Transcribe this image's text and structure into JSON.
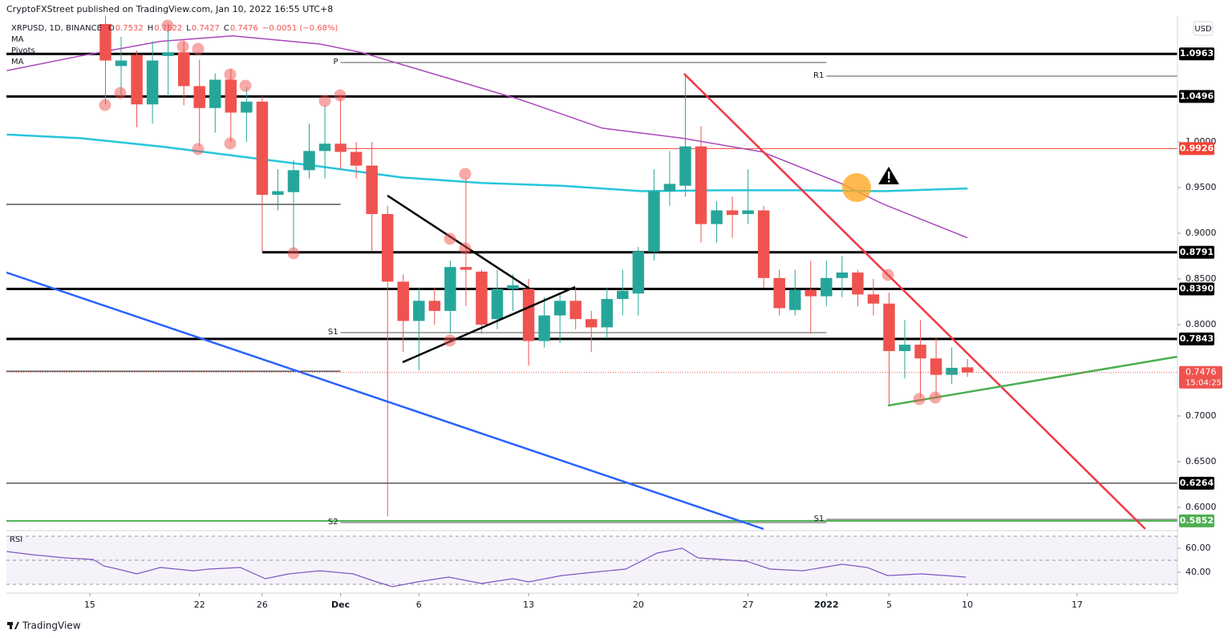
{
  "header": "CryptoFXStreet published on TradingView.com, Jan 10, 2022 16:55 UTC+8",
  "brand": "TradingView",
  "currency": "USD",
  "chart_data": {
    "type": "candlestick",
    "up_color": "#26a69a",
    "down_color": "#ef5350",
    "series": [
      {
        "name": "XRPUSD, 1D, BINANCE",
        "x": [
          1,
          2,
          3,
          4,
          5,
          6,
          7,
          8,
          9,
          10,
          11,
          12,
          13,
          14,
          15,
          16,
          17,
          18,
          19,
          20,
          21,
          22,
          23,
          24,
          25,
          26,
          27,
          28,
          29,
          30,
          31,
          32,
          33,
          34,
          35,
          36,
          37,
          38,
          39,
          40,
          41,
          42,
          43,
          44,
          45,
          46,
          47,
          48,
          49,
          50,
          51,
          52,
          53,
          54,
          55,
          56
        ],
        "open": [
          1.129,
          1.083,
          1.095,
          1.041,
          1.094,
          1.098,
          1.061,
          1.037,
          1.068,
          1.032,
          1.044,
          0.942,
          0.945,
          0.969,
          0.99,
          0.998,
          0.989,
          0.974,
          0.921,
          0.847,
          0.804,
          0.826,
          0.815,
          0.863,
          0.858,
          0.806,
          0.839,
          0.839,
          0.782,
          0.81,
          0.826,
          0.806,
          0.797,
          0.828,
          0.834,
          0.88,
          0.946,
          0.952,
          0.995,
          0.91,
          0.925,
          0.921,
          0.925,
          0.851,
          0.816,
          0.838,
          0.831,
          0.851,
          0.857,
          0.833,
          0.823,
          0.771,
          0.778,
          0.763,
          0.745,
          0.7532
        ],
        "high": [
          1.138,
          1.115,
          1.1,
          1.11,
          1.13,
          1.11,
          1.09,
          1.075,
          1.08,
          1.06,
          1.05,
          0.97,
          0.98,
          1.02,
          1.04,
          1.05,
          1.0,
          1.0,
          0.93,
          0.855,
          0.84,
          0.84,
          0.87,
          0.96,
          0.86,
          0.86,
          0.855,
          0.85,
          0.83,
          0.835,
          0.84,
          0.815,
          0.84,
          0.86,
          0.885,
          0.97,
          0.99,
          1.073,
          1.017,
          0.935,
          0.94,
          0.97,
          0.93,
          0.86,
          0.86,
          0.87,
          0.87,
          0.875,
          0.86,
          0.85,
          0.835,
          0.805,
          0.805,
          0.785,
          0.775,
          0.7622
        ],
        "low": [
          1.041,
          1.05,
          1.016,
          1.02,
          1.05,
          1.04,
          0.995,
          1.01,
          1.0,
          1.0,
          0.88,
          0.925,
          0.88,
          0.96,
          0.96,
          0.97,
          0.96,
          0.88,
          0.59,
          0.77,
          0.75,
          0.8,
          0.79,
          0.82,
          0.79,
          0.795,
          0.815,
          0.755,
          0.775,
          0.78,
          0.795,
          0.77,
          0.785,
          0.81,
          0.81,
          0.87,
          0.93,
          0.94,
          0.89,
          0.89,
          0.895,
          0.91,
          0.84,
          0.81,
          0.81,
          0.79,
          0.82,
          0.83,
          0.82,
          0.81,
          0.713,
          0.741,
          0.72,
          0.72,
          0.735,
          0.7427
        ],
        "close": [
          1.089,
          1.089,
          1.041,
          1.089,
          1.098,
          1.061,
          1.037,
          1.068,
          1.032,
          1.044,
          0.942,
          0.946,
          0.969,
          0.99,
          0.998,
          0.989,
          0.974,
          0.921,
          0.847,
          0.804,
          0.826,
          0.815,
          0.863,
          0.86,
          0.8,
          0.839,
          0.843,
          0.782,
          0.81,
          0.826,
          0.806,
          0.797,
          0.828,
          0.837,
          0.88,
          0.946,
          0.954,
          0.995,
          0.91,
          0.925,
          0.92,
          0.925,
          0.851,
          0.818,
          0.838,
          0.831,
          0.851,
          0.857,
          0.833,
          0.823,
          0.771,
          0.778,
          0.763,
          0.745,
          0.7527,
          0.7476
        ]
      }
    ],
    "ohlc_keys": [
      "O",
      "H",
      "L",
      "C"
    ],
    "change": "−0.0051 (−0.68%)",
    "indicators": [
      "MA",
      "Pivots",
      "MA"
    ],
    "ma": [
      {
        "name": "MA",
        "color": "#ab47bc",
        "x": [
          -5.3,
          -0.6,
          4.5,
          9.1,
          14.7,
          17.3,
          22.4,
          27.5,
          32.7,
          37.8,
          42.9,
          48.0,
          50.6,
          56
        ],
        "values": [
          1.078,
          1.094,
          1.11,
          1.116,
          1.107,
          1.098,
          1.072,
          1.046,
          1.015,
          1.004,
          0.989,
          0.954,
          0.932,
          0.895
        ]
      },
      {
        "name": "MA",
        "color": "#26c6da",
        "x": [
          -5.3,
          -0.6,
          4.5,
          9.6,
          14.7,
          19.9,
          25.0,
          30.1,
          35.2,
          40.3,
          45.4,
          50.6,
          56
        ],
        "values": [
          1.008,
          1.004,
          0.995,
          0.984,
          0.973,
          0.961,
          0.955,
          0.952,
          0.946,
          0.947,
          0.947,
          0.946,
          0.949
        ]
      }
    ],
    "xlim": [
      -5.32,
      69.4
    ],
    "ylim": [
      0.5763,
      1.1377
    ],
    "xticks": [
      {
        "value": 0,
        "label": "15"
      },
      {
        "value": 7,
        "label": "22"
      },
      {
        "value": 11,
        "label": "26"
      },
      {
        "value": 16,
        "label": "Dec"
      },
      {
        "value": 21,
        "label": "6"
      },
      {
        "value": 28,
        "label": "13"
      },
      {
        "value": 35,
        "label": "20"
      },
      {
        "value": 42,
        "label": "27"
      },
      {
        "value": 47,
        "label": "2022"
      },
      {
        "value": 51,
        "label": "5"
      },
      {
        "value": 56,
        "label": "10"
      },
      {
        "value": 63,
        "label": "17"
      }
    ],
    "yticks": [
      {
        "value": 1.0,
        "label": "1.0000"
      },
      {
        "value": 0.95,
        "label": "0.9500"
      },
      {
        "value": 0.9,
        "label": "0.9000"
      },
      {
        "value": 0.85,
        "label": "0.8500"
      },
      {
        "value": 0.8,
        "label": "0.8000"
      },
      {
        "value": 0.7,
        "label": "0.7000"
      },
      {
        "value": 0.65,
        "label": "0.6500"
      },
      {
        "value": 0.6,
        "label": "0.6000"
      }
    ],
    "levels": [
      {
        "price": 1.0963,
        "label": "1.0963",
        "color": "#000000",
        "width": 3
      },
      {
        "price": 1.0496,
        "label": "1.0496",
        "color": "#000000",
        "width": 3
      },
      {
        "price": 0.9926,
        "label": "0.9926",
        "color": "#f44336",
        "width": 1,
        "from": 16
      },
      {
        "price": 0.8791,
        "label": "0.8791",
        "color": "#000000",
        "width": 3,
        "from": 11
      },
      {
        "price": 0.839,
        "label": "0.8390",
        "color": "#000000",
        "width": 3
      },
      {
        "price": 0.7843,
        "label": "0.7843",
        "color": "#000000",
        "width": 3
      },
      {
        "price": 0.6264,
        "label": "0.6264",
        "color": "#000000",
        "width": 1
      },
      {
        "price": 0.5852,
        "label": "0.5852",
        "color": "#4caf50",
        "width": 2
      },
      {
        "price": 0.9316,
        "color": "#000000",
        "width": 1,
        "to": 16
      },
      {
        "price": 0.749,
        "color": "#000000",
        "width": 1,
        "to": 16
      }
    ],
    "pivots": [
      {
        "name": "P",
        "price": 1.0868,
        "from": 16,
        "to": 47
      },
      {
        "name": "R1",
        "price": 1.0719,
        "from": 47
      },
      {
        "name": "S1",
        "price": 0.7912,
        "from": 16,
        "to": 47
      },
      {
        "name": "S2",
        "price": 0.5833,
        "from": 16,
        "to": 47
      },
      {
        "name": "S1",
        "price": 0.5868,
        "from": 47
      }
    ],
    "last_price": {
      "value": 0.7476,
      "label": "0.7476"
    },
    "countdown": "15:04:25",
    "drawings": [
      {
        "color": "#2962ff",
        "x": [
          -5.32,
          42.99
        ],
        "y": [
          0.857,
          0.5763
        ]
      },
      {
        "color": "#f23645",
        "x": [
          37.92,
          67.35
        ],
        "y": [
          1.0746,
          0.5763
        ]
      },
      {
        "color": "#4caf50",
        "x": [
          50.92,
          69.4
        ],
        "y": [
          0.7114,
          0.7649
        ]
      },
      {
        "color": "#000000",
        "x": [
          18.99,
          28.05
        ],
        "y": [
          0.9412,
          0.8395
        ]
      },
      {
        "color": "#000000",
        "x": [
          19.96,
          30.97
        ],
        "y": [
          0.7588,
          0.8412
        ]
      }
    ],
    "rsi": {
      "name": "RSI",
      "color": "#7e57c2",
      "x": [
        -5.3,
        -3.7,
        -1.6,
        0.2,
        0.9,
        2.0,
        3.0,
        4.5,
        6.6,
        7.6,
        9.6,
        11.2,
        12.7,
        14.7,
        16.8,
        18.3,
        19.3,
        20.9,
        22.9,
        25.0,
        27.0,
        28.0,
        30.1,
        32.1,
        34.2,
        36.2,
        37.8,
        38.8,
        41.9,
        43.4,
        45.5,
        48.0,
        49.6,
        50.9,
        53.1,
        55.9
      ],
      "values": [
        57.3,
        54.7,
        52,
        50.7,
        45.3,
        42,
        38.7,
        44,
        41.3,
        42.7,
        44,
        34.7,
        38.7,
        41.3,
        38.7,
        32,
        28,
        32,
        36,
        30.7,
        34.7,
        32,
        37.3,
        40,
        42.7,
        56,
        60,
        52,
        49.3,
        42.7,
        41.3,
        46.7,
        44,
        37.3,
        38.7,
        36
      ],
      "ylim": [
        22.7,
        72.7
      ],
      "yticks": [
        {
          "value": 60,
          "label": "60.00"
        },
        {
          "value": 40,
          "label": "40.00"
        }
      ],
      "levels": [
        70,
        50,
        30
      ]
    }
  }
}
